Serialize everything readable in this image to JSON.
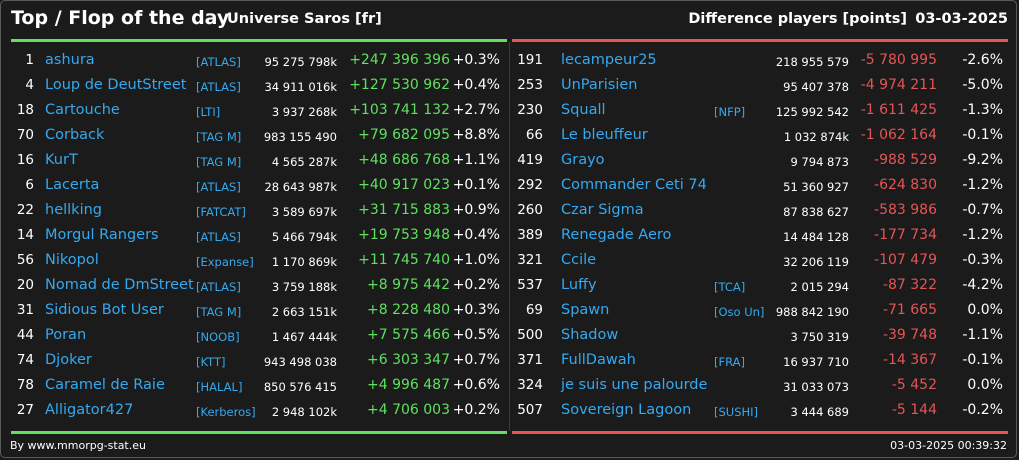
{
  "header": {
    "title": "Top / Flop of the day",
    "server": "Universe Saros [fr]",
    "metric": "Difference players [points]",
    "date": "03-03-2025"
  },
  "colors": {
    "top_accent": "#5fe05f",
    "flop_accent": "#e55555",
    "name_link": "#35a9f0",
    "background": "#1b1b1b"
  },
  "top": [
    {
      "rank": "1",
      "name": "ashura",
      "tag": "[ATLAS]",
      "points": "95 275 798k",
      "diff": "+247 396 396",
      "pct": "+0.3%"
    },
    {
      "rank": "4",
      "name": "Loup de DeutStreet",
      "tag": "[ATLAS]",
      "points": "34 911 016k",
      "diff": "+127 530 962",
      "pct": "+0.4%"
    },
    {
      "rank": "18",
      "name": "Cartouche",
      "tag": "[LTI]",
      "points": "3 937 268k",
      "diff": "+103 741 132",
      "pct": "+2.7%"
    },
    {
      "rank": "70",
      "name": "Corback",
      "tag": "[TAG M]",
      "points": "983 155 490",
      "diff": "+79 682 095",
      "pct": "+8.8%"
    },
    {
      "rank": "16",
      "name": "KurT",
      "tag": "[TAG M]",
      "points": "4 565 287k",
      "diff": "+48 686 768",
      "pct": "+1.1%"
    },
    {
      "rank": "6",
      "name": "Lacerta",
      "tag": "[ATLAS]",
      "points": "28 643 987k",
      "diff": "+40 917 023",
      "pct": "+0.1%"
    },
    {
      "rank": "22",
      "name": "hellking",
      "tag": "[FATCAT]",
      "points": "3 589 697k",
      "diff": "+31 715 883",
      "pct": "+0.9%"
    },
    {
      "rank": "14",
      "name": "Morgul Rangers",
      "tag": "[ATLAS]",
      "points": "5 466 794k",
      "diff": "+19 753 948",
      "pct": "+0.4%"
    },
    {
      "rank": "56",
      "name": "Nikopol",
      "tag": "[Expanse]",
      "points": "1 170 869k",
      "diff": "+11 745 740",
      "pct": "+1.0%"
    },
    {
      "rank": "20",
      "name": "Nomad de DmStreet",
      "tag": "[ATLAS]",
      "points": "3 759 188k",
      "diff": "+8 975 442",
      "pct": "+0.2%"
    },
    {
      "rank": "31",
      "name": "Sidious Bot User",
      "tag": "[TAG M]",
      "points": "2 663 151k",
      "diff": "+8 228 480",
      "pct": "+0.3%"
    },
    {
      "rank": "44",
      "name": "Poran",
      "tag": "[NOOB]",
      "points": "1 467 444k",
      "diff": "+7 575 466",
      "pct": "+0.5%"
    },
    {
      "rank": "74",
      "name": "Djoker",
      "tag": "[KTT]",
      "points": "943 498 038",
      "diff": "+6 303 347",
      "pct": "+0.7%"
    },
    {
      "rank": "78",
      "name": "Caramel de Raie",
      "tag": "[HALAL]",
      "points": "850 576 415",
      "diff": "+4 996 487",
      "pct": "+0.6%"
    },
    {
      "rank": "27",
      "name": "Alligator427",
      "tag": "[Kerberos]",
      "points": "2 948 102k",
      "diff": "+4 706 003",
      "pct": "+0.2%"
    }
  ],
  "flop": [
    {
      "rank": "191",
      "name": "lecampeur25",
      "tag": "",
      "points": "218 955 579",
      "diff": "-5 780 995",
      "pct": "-2.6%"
    },
    {
      "rank": "253",
      "name": "UnParisien",
      "tag": "",
      "points": "95 407 378",
      "diff": "-4 974 211",
      "pct": "-5.0%"
    },
    {
      "rank": "230",
      "name": "Squall",
      "tag": "[NFP]",
      "points": "125 992 542",
      "diff": "-1 611 425",
      "pct": "-1.3%"
    },
    {
      "rank": "66",
      "name": "Le bleuffeur",
      "tag": "",
      "points": "1 032 874k",
      "diff": "-1 062 164",
      "pct": "-0.1%"
    },
    {
      "rank": "419",
      "name": "Grayo",
      "tag": "",
      "points": "9 794 873",
      "diff": "-988 529",
      "pct": "-9.2%"
    },
    {
      "rank": "292",
      "name": "Commander Ceti 74",
      "tag": "",
      "points": "51 360 927",
      "diff": "-624 830",
      "pct": "-1.2%"
    },
    {
      "rank": "260",
      "name": "Czar Sigma",
      "tag": "",
      "points": "87 838 627",
      "diff": "-583 986",
      "pct": "-0.7%"
    },
    {
      "rank": "389",
      "name": "Renegade Aero",
      "tag": "",
      "points": "14 484 128",
      "diff": "-177 734",
      "pct": "-1.2%"
    },
    {
      "rank": "321",
      "name": "Ccile",
      "tag": "",
      "points": "32 206 119",
      "diff": "-107 479",
      "pct": "-0.3%"
    },
    {
      "rank": "537",
      "name": "Luffy",
      "tag": "[TCA]",
      "points": "2 015 294",
      "diff": "-87 322",
      "pct": "-4.2%"
    },
    {
      "rank": "69",
      "name": "Spawn",
      "tag": "[Oso Un]",
      "points": "988 842 190",
      "diff": "-71 665",
      "pct": "0.0%"
    },
    {
      "rank": "500",
      "name": "Shadow",
      "tag": "",
      "points": "3 750 319",
      "diff": "-39 748",
      "pct": "-1.1%"
    },
    {
      "rank": "371",
      "name": "FullDawah",
      "tag": "[FRA]",
      "points": "16 937 710",
      "diff": "-14 367",
      "pct": "-0.1%"
    },
    {
      "rank": "324",
      "name": "je suis une palourde",
      "tag": "",
      "points": "31 033 073",
      "diff": "-5 452",
      "pct": "0.0%"
    },
    {
      "rank": "507",
      "name": "Sovereign Lagoon",
      "tag": "[SUSHI]",
      "points": "3 444 689",
      "diff": "-5 144",
      "pct": "-0.2%"
    }
  ],
  "footer": {
    "credit": "By www.mmorpg-stat.eu",
    "timestamp": "03-03-2025 00:39:32"
  }
}
